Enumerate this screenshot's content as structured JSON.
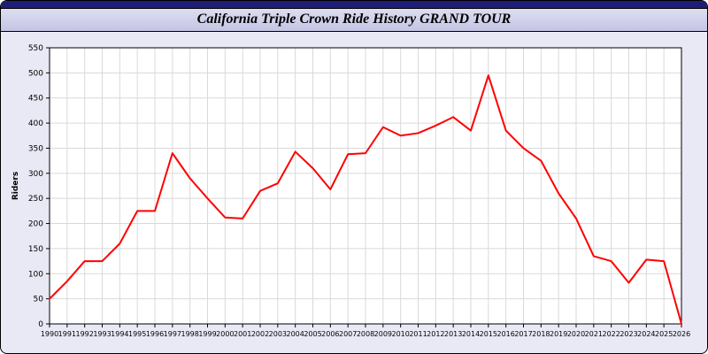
{
  "window": {
    "title": "California Triple Crown Ride History GRAND TOUR"
  },
  "chart_data": {
    "type": "line",
    "title": "California Triple Crown Ride History GRAND TOUR",
    "xlabel": "",
    "ylabel": "Riders",
    "ylim": [
      0,
      550
    ],
    "ytick_step": 50,
    "grid": true,
    "legend": "none",
    "line_color": "#ff0000",
    "background_color": "#e9e9f6",
    "plot_background_color": "#ffffff",
    "categories": [
      "1990",
      "1991",
      "1992",
      "1993",
      "1994",
      "1995",
      "1996",
      "1997",
      "1998",
      "1999",
      "2000",
      "2001",
      "2002",
      "2003",
      "2004",
      "2005",
      "2006",
      "2007",
      "2008",
      "2009",
      "2010",
      "2011",
      "2012",
      "2013",
      "2014",
      "2015",
      "2016",
      "2017",
      "2018",
      "2019",
      "2020",
      "2021",
      "2022",
      "2023",
      "2024",
      "2025",
      "2026"
    ],
    "values": [
      50,
      85,
      125,
      125,
      160,
      225,
      225,
      340,
      290,
      250,
      212,
      210,
      265,
      280,
      343,
      310,
      268,
      338,
      340,
      392,
      375,
      380,
      395,
      412,
      385,
      495,
      385,
      350,
      325,
      260,
      210,
      135,
      125,
      82,
      128,
      125,
      0
    ]
  }
}
